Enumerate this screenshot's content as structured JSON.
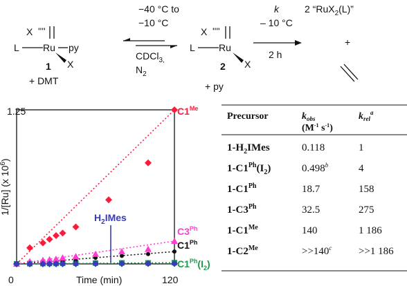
{
  "scheme": {
    "cond1_line1": "−40 °C to",
    "cond1_line2": "−10 °C",
    "cond1_line3": "CDCl",
    "cond1_line3_sub": "3,",
    "cond1_line4": "N",
    "cond1_line4_sub": "2",
    "cond2_k": "k",
    "cond2_temp": "– 10 °C",
    "cond2_time": "2 h",
    "product": "2 “RuX",
    "product_sub": "2",
    "product_end": "(L)”",
    "plus": "+",
    "cmpd1_label": "1",
    "cmpd1_extra": "+ DMT",
    "cmpd2_label": "2",
    "cmpd2_extra": "+ py",
    "atom_L": "L",
    "atom_Ru": "Ru",
    "atom_py": "py",
    "atom_X": "X"
  },
  "chart_data": {
    "type": "scatter",
    "title": "",
    "xlabel": "Time (min)",
    "ylabel": "1/[Ru]  (x 10",
    "ylabel_sup": "6",
    "ylabel_end": ")",
    "xlim": [
      0,
      120
    ],
    "ylim": [
      0,
      1.25
    ],
    "x_ticks": [
      "0",
      "120"
    ],
    "y_ticks": [
      "1.25"
    ],
    "annotation": "H",
    "annotation_sub": "2",
    "annotation_end": "IMes",
    "series": [
      {
        "name": "C1",
        "sup": "Me",
        "color": "#ff1a3c",
        "marker": "diamond",
        "x": [
          0,
          10,
          20,
          25,
          30,
          35,
          45,
          70,
          100,
          120
        ],
        "y": [
          0,
          0.13,
          0.17,
          0.2,
          0.23,
          0.25,
          0.3,
          0.52,
          0.82,
          1.25
        ]
      },
      {
        "name": "C3",
        "sup": "Ph",
        "color": "#ff3cd2",
        "marker": "triangle",
        "x": [
          0,
          10,
          20,
          25,
          30,
          35,
          45,
          60,
          80,
          100,
          120
        ],
        "y": [
          0,
          0.02,
          0.03,
          0.035,
          0.04,
          0.05,
          0.06,
          0.08,
          0.1,
          0.12,
          0.185
        ]
      },
      {
        "name": "C1",
        "sup": "Ph",
        "color": "#111111",
        "marker": "circle",
        "x": [
          0,
          10,
          20,
          25,
          30,
          35,
          45,
          60,
          80,
          100,
          120
        ],
        "y": [
          0,
          0.005,
          0.01,
          0.015,
          0.02,
          0.025,
          0.03,
          0.05,
          0.065,
          0.08,
          0.1
        ]
      },
      {
        "name": "C1",
        "sup": "Ph",
        "suffix": "(I",
        "suffix_sub": "2",
        "suffix_end": ")",
        "color": "#1a9c4a",
        "marker": "square",
        "x": [
          0,
          10,
          20,
          25,
          30,
          35,
          45,
          60,
          80,
          100,
          120
        ],
        "y": [
          0,
          0.002,
          0.003,
          0.004,
          0.004,
          0.005,
          0.006,
          0.007,
          0.008,
          0.008,
          0.01
        ]
      },
      {
        "name": "H2IMes",
        "color": "#3a3ac0",
        "marker": "diamond",
        "x": [
          0,
          10,
          20,
          25,
          30,
          35,
          45,
          60,
          80,
          100,
          120
        ],
        "y": [
          0,
          0,
          0,
          0,
          0,
          0.001,
          0.001,
          0.002,
          0.002,
          0.003,
          0.003
        ]
      }
    ]
  },
  "table": {
    "header": {
      "precursor": "Precursor",
      "kobs": "k",
      "kobs_sub": "obs",
      "kobs_units": "(M",
      "kobs_units_sup1": "-1",
      "kobs_units_mid": " s",
      "kobs_units_sup2": "-1",
      "kobs_units_end": ")",
      "krel": "k",
      "krel_sub": "rel",
      "krel_sup": "a"
    },
    "rows": [
      {
        "pre": "1-H",
        "pre_sub": "2",
        "pre_end": "IMes",
        "kobs": "0.118",
        "kobs_sup": "",
        "krel": "1"
      },
      {
        "pre": "1-C1",
        "pre_sup": "Ph",
        "pre_end": "(I",
        "pre_sub2": "2",
        "pre_end2": ")",
        "kobs": "0.498",
        "kobs_sup": "b",
        "krel": "4"
      },
      {
        "pre": "1-C1",
        "pre_sup": "Ph",
        "kobs": "18.7",
        "krel": "158"
      },
      {
        "pre": "1-C3",
        "pre_sup": "Ph",
        "kobs": "32.5",
        "krel": "275"
      },
      {
        "pre": "1-C1",
        "pre_sup": "Me",
        "kobs": "140",
        "krel": "1 186"
      },
      {
        "pre": "1-C2",
        "pre_sup": "Me",
        "kobs": ">>140",
        "kobs_sup": "c",
        "krel": ">>1 186"
      }
    ]
  }
}
